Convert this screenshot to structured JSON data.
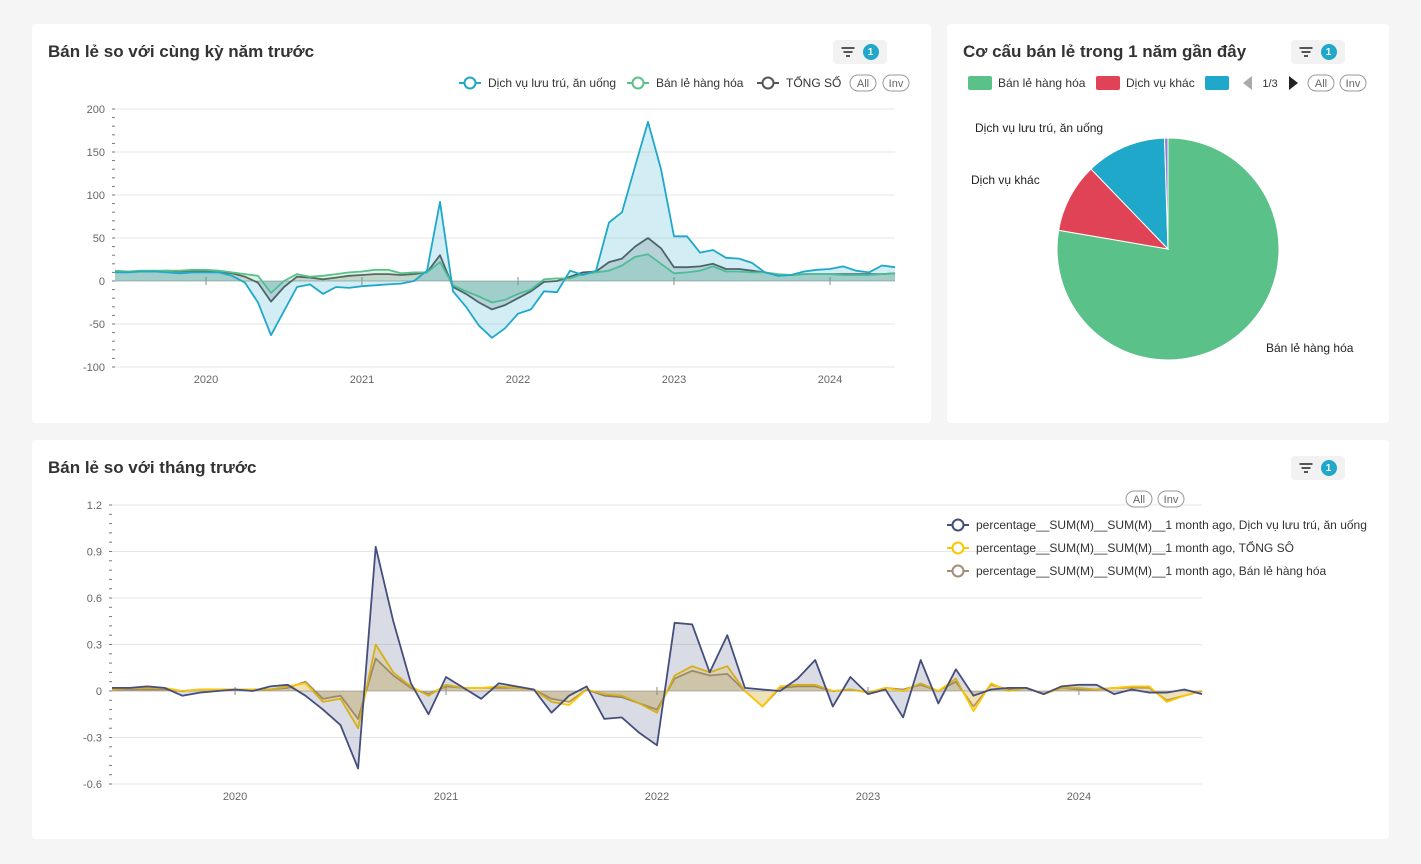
{
  "panels": {
    "yoy": {
      "title": "Bán lẻ so với cùng kỳ năm trước",
      "filter_count": "1"
    },
    "pie": {
      "title": "Cơ cấu bán lẻ trong 1 năm gần đây",
      "filter_count": "1"
    },
    "mom": {
      "title": "Bán lẻ so với tháng trước",
      "filter_count": "1"
    }
  },
  "legend_controls": {
    "all": "All",
    "inv": "Inv",
    "page": "1/3"
  },
  "chart_data": [
    {
      "id": "yoy",
      "type": "area",
      "title": "Bán lẻ so với cùng kỳ năm trước",
      "x_start": "2019-06",
      "x_ticks": [
        "2020",
        "2021",
        "2022",
        "2023",
        "2024"
      ],
      "ylim": [
        -100,
        200
      ],
      "y_ticks": [
        200,
        150,
        100,
        50,
        0,
        -50,
        -100
      ],
      "grid": true,
      "legend": "top-right",
      "series": [
        {
          "name": "Dịch vụ lưu trú, ăn uống",
          "color": "#1fa8c9",
          "values": [
            10,
            10,
            11,
            11,
            10,
            9,
            10,
            10,
            10,
            6,
            -2,
            -25,
            -63,
            -35,
            -7,
            -4,
            -15,
            -7,
            -8,
            -6,
            -5,
            -4,
            -3,
            0,
            12,
            92,
            -12,
            -30,
            -52,
            -66,
            -55,
            -38,
            -33,
            -12,
            -13,
            12,
            7,
            12,
            68,
            80,
            133,
            185,
            130,
            52,
            52,
            33,
            36,
            27,
            26,
            21,
            10,
            6,
            7,
            11,
            13,
            14,
            17,
            12,
            10,
            18,
            16
          ]
        },
        {
          "name": "Bán lẻ hàng hóa",
          "color": "#5ac189",
          "values": [
            12,
            11,
            12,
            12,
            12,
            12,
            13,
            13,
            12,
            10,
            8,
            6,
            -14,
            0,
            8,
            5,
            6,
            8,
            10,
            11,
            13,
            13,
            9,
            10,
            10,
            22,
            -5,
            -12,
            -18,
            -25,
            -22,
            -15,
            -10,
            2,
            3,
            3,
            8,
            10,
            12,
            18,
            28,
            31,
            20,
            9,
            10,
            12,
            17,
            11,
            11,
            10,
            10,
            8,
            7,
            8,
            8,
            8,
            7,
            7,
            7,
            8,
            9
          ]
        },
        {
          "name": "TỔNG SỐ",
          "color": "#555555",
          "values": [
            11,
            11,
            11,
            11,
            12,
            11,
            12,
            12,
            11,
            9,
            5,
            -2,
            -24,
            -7,
            5,
            4,
            2,
            4,
            6,
            7,
            8,
            8,
            7,
            8,
            10,
            30,
            -7,
            -15,
            -25,
            -33,
            -28,
            -20,
            -12,
            -1,
            0,
            5,
            10,
            11,
            22,
            26,
            40,
            50,
            38,
            16,
            16,
            17,
            20,
            14,
            14,
            12,
            10,
            7,
            7,
            8,
            8,
            8,
            8,
            8,
            8,
            8,
            9
          ]
        }
      ]
    },
    {
      "id": "pie",
      "type": "pie",
      "title": "Cơ cấu bán lẻ trong 1 năm gần đây",
      "legend": "top",
      "slices": [
        {
          "label": "Bán lẻ hàng hóa",
          "value": 77.7,
          "color": "#5ac189"
        },
        {
          "label": "Dịch vụ khác",
          "value": 10.1,
          "color": "#e04355"
        },
        {
          "label": "Dịch vụ lưu trú, ăn uống",
          "value": 11.7,
          "color": "#1fa8c9"
        },
        {
          "label": "",
          "value": 0.5,
          "color": "#8a7fd0"
        }
      ]
    },
    {
      "id": "mom",
      "type": "area",
      "title": "Bán lẻ so với tháng trước",
      "x_start": "2019-06",
      "x_ticks": [
        "2020",
        "2021",
        "2022",
        "2023",
        "2024"
      ],
      "ylim": [
        -0.6,
        1.2
      ],
      "y_ticks": [
        "1.2",
        "0.9",
        "0.6",
        "0.3",
        "0",
        "-0.3",
        "-0.6"
      ],
      "grid": true,
      "legend": "top-right",
      "series": [
        {
          "name": "percentage__SUM(M)__SUM(M)__1 month ago, Dịch vụ lưu trú, ăn uống",
          "color": "#454e7c",
          "values": [
            0.02,
            0.02,
            0.03,
            0.02,
            -0.03,
            -0.01,
            0.0,
            0.01,
            0.0,
            0.03,
            0.04,
            -0.03,
            -0.12,
            -0.22,
            -0.5,
            0.93,
            0.45,
            0.05,
            -0.15,
            0.09,
            0.02,
            -0.05,
            0.05,
            0.03,
            0.01,
            -0.14,
            -0.03,
            0.03,
            -0.18,
            -0.17,
            -0.27,
            -0.35,
            0.44,
            0.43,
            0.12,
            0.36,
            0.02,
            0.01,
            0.0,
            0.08,
            0.2,
            -0.1,
            0.09,
            -0.02,
            0.01,
            -0.17,
            0.2,
            -0.08,
            0.14,
            -0.03,
            0.01,
            0.02,
            0.02,
            -0.02,
            0.03,
            0.04,
            0.04,
            -0.02,
            0.01,
            -0.01,
            -0.01,
            0.01,
            -0.02
          ]
        },
        {
          "name": "percentage__SUM(M)__SUM(M)__1 month ago, TỔNG SÔ",
          "color": "#fcc700",
          "values": [
            0.01,
            0.02,
            0.02,
            0.02,
            0.0,
            0.01,
            0.01,
            0.01,
            0.01,
            0.01,
            0.03,
            0.05,
            -0.07,
            -0.05,
            -0.24,
            0.3,
            0.12,
            0.03,
            -0.03,
            0.04,
            0.02,
            0.02,
            0.03,
            0.02,
            0.01,
            -0.07,
            -0.09,
            0.01,
            -0.02,
            -0.03,
            -0.08,
            -0.14,
            0.1,
            0.16,
            0.12,
            0.16,
            0.0,
            -0.1,
            0.03,
            0.04,
            0.04,
            0.0,
            0.01,
            -0.01,
            0.02,
            0.0,
            0.05,
            0.0,
            0.08,
            -0.13,
            0.05,
            0.0,
            0.02,
            -0.02,
            0.02,
            0.02,
            0.01,
            0.02,
            0.03,
            0.03,
            -0.07,
            -0.03,
            0.0
          ]
        },
        {
          "name": "percentage__SUM(M)__SUM(M)__1 month ago, Bán lẻ hàng hóa",
          "color": "#a38f79",
          "values": [
            0.01,
            0.01,
            0.01,
            0.01,
            0.0,
            0.01,
            0.01,
            0.01,
            0.01,
            0.01,
            0.02,
            0.06,
            -0.05,
            -0.03,
            -0.18,
            0.21,
            0.1,
            0.02,
            -0.02,
            0.03,
            0.02,
            0.02,
            0.02,
            0.02,
            0.01,
            -0.05,
            -0.07,
            0.01,
            -0.03,
            -0.04,
            -0.08,
            -0.12,
            0.08,
            0.13,
            0.1,
            0.11,
            0.0,
            -0.1,
            0.02,
            0.03,
            0.03,
            0.0,
            0.01,
            -0.01,
            0.02,
            0.01,
            0.04,
            0.0,
            0.06,
            -0.1,
            0.04,
            0.01,
            0.02,
            -0.02,
            0.02,
            0.01,
            0.01,
            0.02,
            0.02,
            0.02,
            -0.06,
            -0.03,
            0.0
          ]
        }
      ]
    }
  ]
}
